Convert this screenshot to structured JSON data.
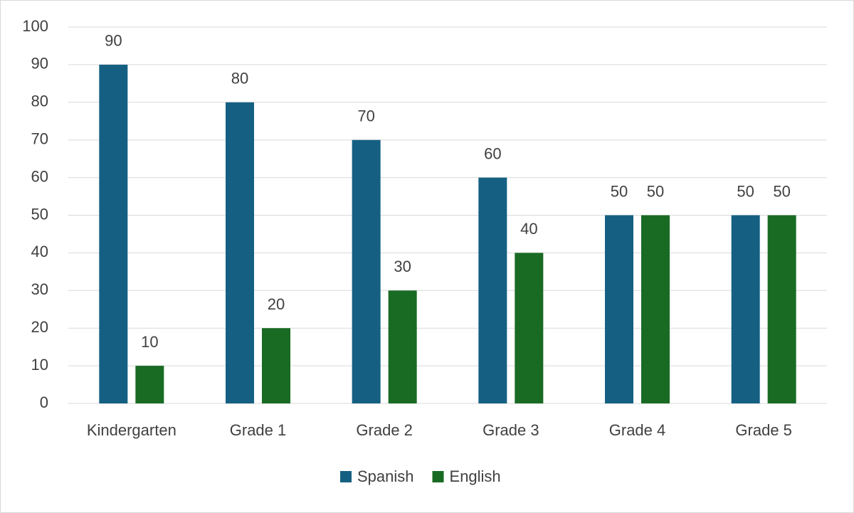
{
  "chart_data": {
    "type": "bar",
    "categories": [
      "Kindergarten",
      "Grade 1",
      "Grade 2",
      "Grade 3",
      "Grade 4",
      "Grade 5"
    ],
    "series": [
      {
        "name": "Spanish",
        "color": "#156082",
        "values": [
          90,
          80,
          70,
          60,
          50,
          50
        ]
      },
      {
        "name": "English",
        "color": "#196b24",
        "values": [
          10,
          20,
          30,
          40,
          50,
          50
        ]
      }
    ],
    "ylim": [
      0,
      100
    ],
    "yticks": [
      0,
      10,
      20,
      30,
      40,
      50,
      60,
      70,
      80,
      90,
      100
    ],
    "grid": true,
    "legend": "bottom"
  }
}
